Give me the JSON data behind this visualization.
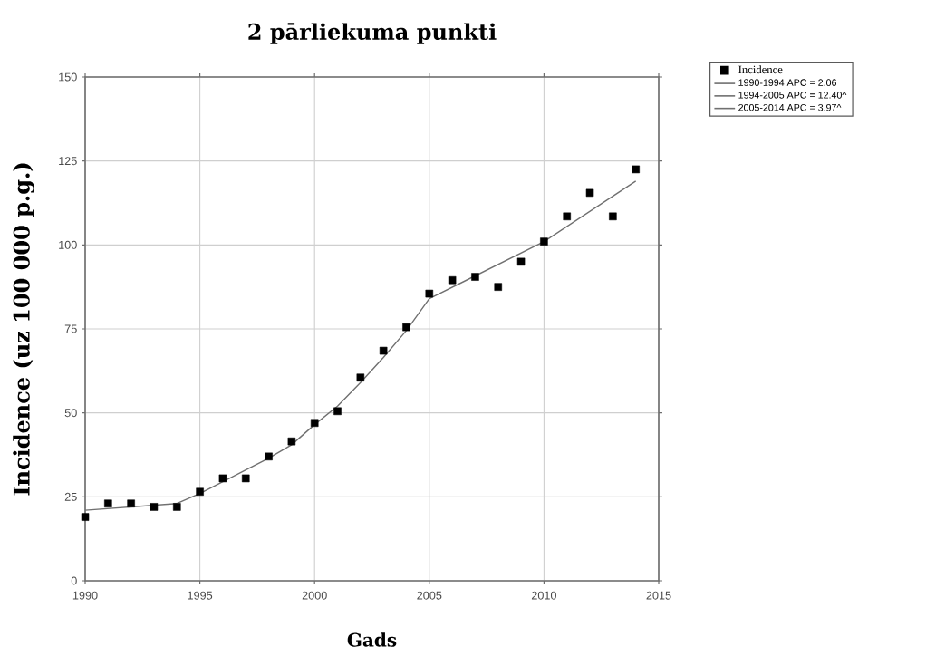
{
  "chart_data": {
    "type": "scatter",
    "title": "2 pārliekuma punkti",
    "xlabel": "Gads",
    "ylabel": "Incidence (uz 100 000 p.g.)",
    "xlim": [
      1990,
      2015
    ],
    "ylim": [
      0,
      150
    ],
    "xticks": [
      1990,
      1995,
      2000,
      2005,
      2010,
      2015
    ],
    "yticks": [
      0,
      25,
      50,
      75,
      100,
      125,
      150
    ],
    "grid": true,
    "legend": "top right",
    "series": [
      {
        "name": "Incidence",
        "marker": "square",
        "color": "#000000",
        "x": [
          1990,
          1991,
          1992,
          1993,
          1994,
          1995,
          1996,
          1997,
          1998,
          1999,
          2000,
          2001,
          2002,
          2003,
          2004,
          2005,
          2006,
          2007,
          2008,
          2009,
          2010,
          2011,
          2012,
          2013,
          2014
        ],
        "values": [
          19,
          23,
          23,
          22,
          22,
          26.5,
          30.5,
          30.5,
          37,
          41.5,
          47,
          50.5,
          60.5,
          68.5,
          75.5,
          85.5,
          89.5,
          90.5,
          87.5,
          95,
          101,
          108.5,
          115.5,
          108.5,
          122.5
        ]
      },
      {
        "name": "1990-1994 APC = 2.06",
        "type": "line",
        "marker": "none",
        "line_style": "solid",
        "color": "#707070",
        "x": [
          1990,
          1994
        ],
        "values": [
          21,
          23
        ]
      },
      {
        "name": "1994-2005 APC = 12.40^",
        "type": "line",
        "marker": "none",
        "line_style": "solid",
        "color": "#707070",
        "x": [
          1994,
          1995,
          1996,
          1997,
          1998,
          1999,
          2000,
          2001,
          2002,
          2003,
          2004,
          2005
        ],
        "values": [
          23,
          26,
          29.5,
          33,
          36.5,
          40.5,
          46.5,
          52,
          59,
          66.5,
          74.5,
          84
        ]
      },
      {
        "name": "2005-2014 APC = 3.97^",
        "type": "line",
        "marker": "none",
        "line_style": "solid",
        "color": "#707070",
        "x": [
          2005,
          2010,
          2014
        ],
        "values": [
          84,
          101,
          119
        ]
      }
    ]
  }
}
